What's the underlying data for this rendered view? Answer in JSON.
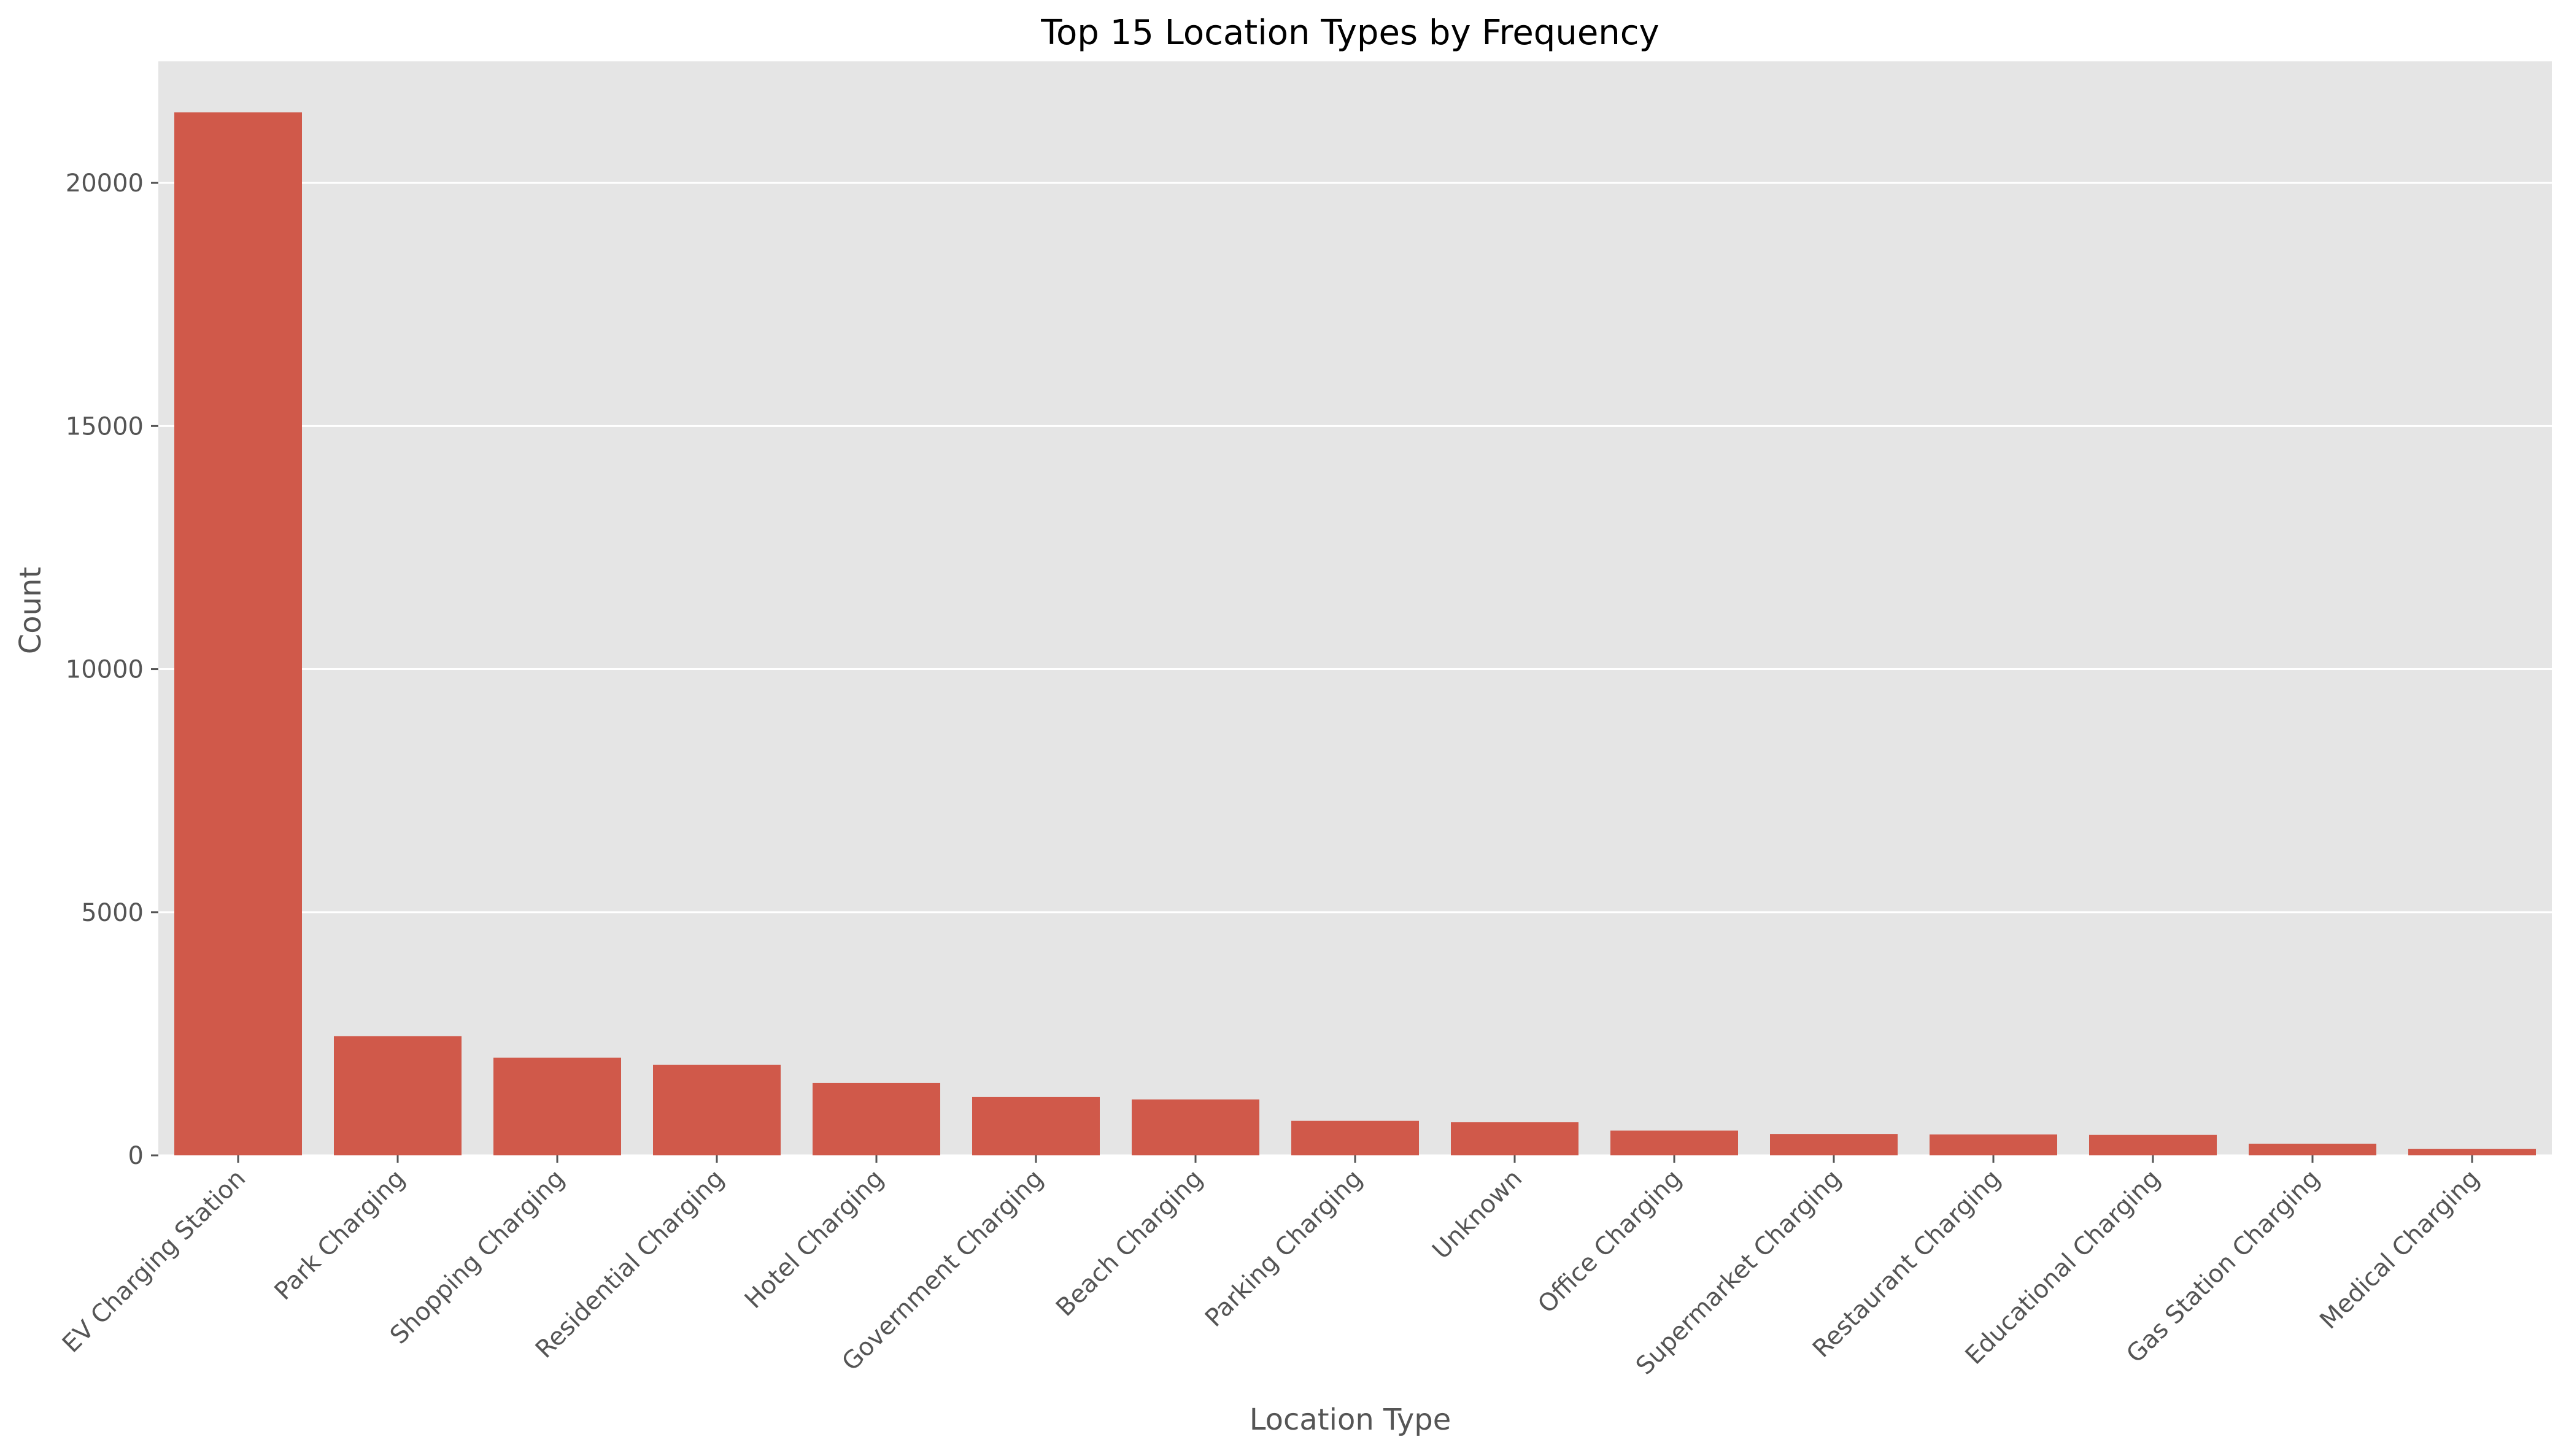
{
  "chart_data": {
    "type": "bar",
    "title": "Top 15 Location Types by Frequency",
    "xlabel": "Location Type",
    "ylabel": "Count",
    "categories": [
      "EV Charging Station",
      "Park Charging",
      "Shopping Charging",
      "Residential Charging",
      "Hotel Charging",
      "Government Charging",
      "Beach Charging",
      "Parking Charging",
      "Unknown",
      "Office Charging",
      "Supermarket Charging",
      "Restaurant Charging",
      "Educational Charging",
      "Gas Station Charging",
      "Medical Charging"
    ],
    "values": [
      21450,
      2450,
      2010,
      1860,
      1490,
      1200,
      1150,
      710,
      680,
      510,
      440,
      430,
      420,
      240,
      130
    ],
    "ylim": [
      0,
      22500
    ],
    "yticks": [
      0,
      5000,
      10000,
      15000,
      20000
    ],
    "grid": true,
    "legend": "none",
    "colors": {
      "bar": "#d0594a",
      "plot_background": "#e5e5e5",
      "grid": "#ffffff",
      "text": "#555555",
      "title": "#000000"
    }
  }
}
